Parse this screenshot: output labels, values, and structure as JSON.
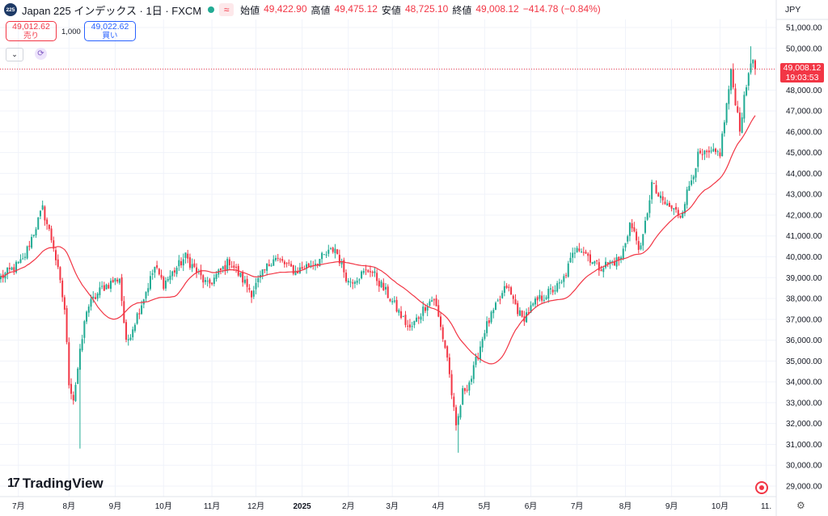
{
  "header": {
    "symbol_badge": "225",
    "title": "Japan 225 インデックス · 1日 · FXCM",
    "wave_icon": "≈",
    "open_label": "始値",
    "open": "49,422.90",
    "high_label": "高値",
    "high": "49,475.12",
    "low_label": "安値",
    "low": "48,725.10",
    "close_label": "終値",
    "close": "49,008.12",
    "change": "−414.78 (−0.84%)"
  },
  "trade": {
    "sell_price": "49,012.62",
    "sell_label": "売り",
    "spread": "1,000",
    "buy_price": "49,022.62",
    "buy_label": "買い"
  },
  "currency": "JPY",
  "logo_text": "TradingView",
  "last_price": {
    "price": "49,008.12",
    "countdown": "19:03:53",
    "value": 49008.12
  },
  "colors": {
    "up": "#22ab94",
    "down": "#f23645",
    "ma": "#f23645",
    "grid": "#f0f3fa"
  },
  "chart_data": {
    "type": "candlestick",
    "ylim": [
      28700,
      51600
    ],
    "y_ticks": [
      29000,
      30000,
      31000,
      32000,
      33000,
      34000,
      35000,
      36000,
      37000,
      38000,
      39000,
      40000,
      41000,
      42000,
      43000,
      44000,
      45000,
      46000,
      47000,
      48000,
      49000,
      50000,
      51000
    ],
    "y_tick_labels": [
      "29,000.00",
      "30,000.00",
      "31,000.00",
      "32,000.00",
      "33,000.00",
      "34,000.00",
      "35,000.00",
      "36,000.00",
      "37,000.00",
      "38,000.00",
      "39,000.00",
      "40,000.00",
      "41,000.00",
      "42,000.00",
      "43,000.00",
      "44,000.00",
      "45,000.00",
      "46,000.00",
      "47,000.00",
      "48,000.00",
      "49,000.00",
      "50,000.00",
      "51,000.00"
    ],
    "x_labels": [
      "7月",
      "8月",
      "9月",
      "10月",
      "11月",
      "12月",
      "2025",
      "2月",
      "3月",
      "4月",
      "5月",
      "6月",
      "7月",
      "8月",
      "9月",
      "10月",
      "11."
    ],
    "x_label_index": [
      8,
      31,
      52,
      74,
      96,
      116,
      137,
      158,
      178,
      199,
      220,
      241,
      262,
      284,
      305,
      327,
      348
    ],
    "total_slots": 350,
    "anchors": [
      [
        0,
        39000
      ],
      [
        10,
        39800
      ],
      [
        19,
        42300
      ],
      [
        24,
        40500
      ],
      [
        29,
        37500
      ],
      [
        31,
        34000
      ],
      [
        33,
        33200
      ],
      [
        39,
        37500
      ],
      [
        46,
        38500
      ],
      [
        54,
        39000
      ],
      [
        57,
        35800
      ],
      [
        62,
        37200
      ],
      [
        70,
        39500
      ],
      [
        74,
        38700
      ],
      [
        84,
        40000
      ],
      [
        94,
        38600
      ],
      [
        104,
        39800
      ],
      [
        114,
        38300
      ],
      [
        124,
        40000
      ],
      [
        134,
        39300
      ],
      [
        144,
        39800
      ],
      [
        152,
        40400
      ],
      [
        158,
        38800
      ],
      [
        168,
        39400
      ],
      [
        177,
        38000
      ],
      [
        186,
        36500
      ],
      [
        194,
        37800
      ],
      [
        197,
        38000
      ],
      [
        203,
        35200
      ],
      [
        207,
        31700
      ],
      [
        210,
        33500
      ],
      [
        214,
        34200
      ],
      [
        220,
        36500
      ],
      [
        230,
        38600
      ],
      [
        237,
        37000
      ],
      [
        244,
        37900
      ],
      [
        255,
        38700
      ],
      [
        262,
        40600
      ],
      [
        272,
        39500
      ],
      [
        282,
        39900
      ],
      [
        286,
        41600
      ],
      [
        291,
        40300
      ],
      [
        296,
        43500
      ],
      [
        300,
        42700
      ],
      [
        309,
        42000
      ],
      [
        317,
        44800
      ],
      [
        327,
        45000
      ],
      [
        332,
        48800
      ],
      [
        336,
        46200
      ],
      [
        341,
        49500
      ],
      [
        343,
        49008
      ]
    ],
    "ma_period": 25,
    "open": 49422.9,
    "high": 49475.12,
    "low": 48725.1,
    "close": 49008.12
  }
}
